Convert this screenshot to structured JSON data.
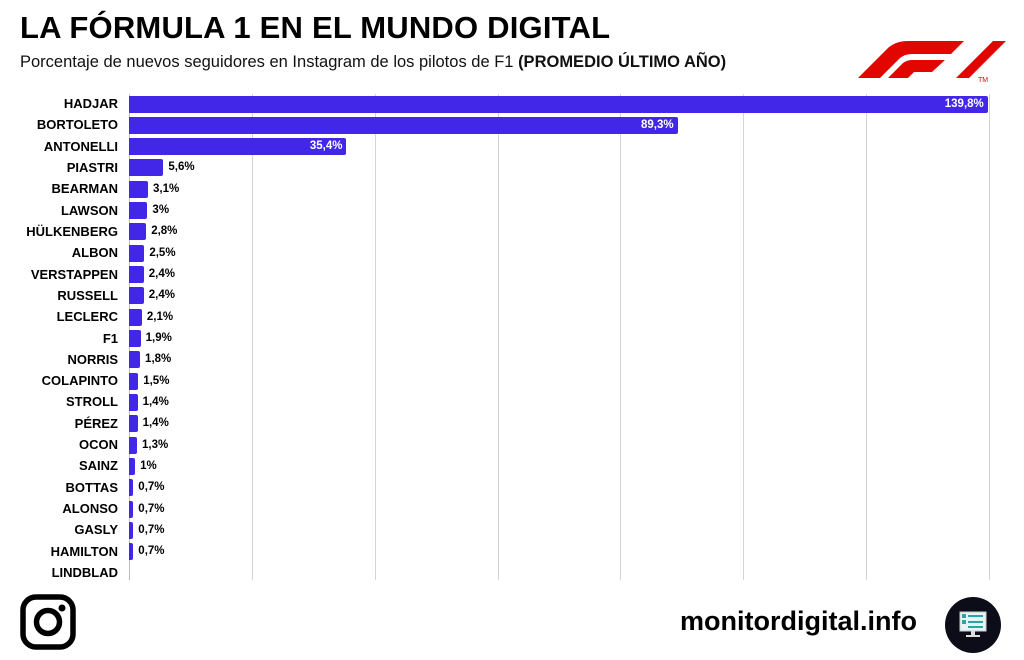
{
  "header": {
    "title": "LA FÓRMULA 1 EN EL MUNDO DIGITAL",
    "subtitle": "Porcentaje de nuevos seguidores en Instagram de los pilotos de F1 ",
    "subtitle_bold": "(PROMEDIO ÚLTIMO AÑO)",
    "logo_text": "F1 ™"
  },
  "footer": {
    "site": "monitordigital.info",
    "icons": [
      "instagram-icon",
      "monitor-icon"
    ]
  },
  "colors": {
    "bar": "#4327e8",
    "logo": "#e10600"
  },
  "chart_data": {
    "type": "bar",
    "orientation": "horizontal",
    "title": "LA FÓRMULA 1 EN EL MUNDO DIGITAL",
    "xlim": [
      0,
      140
    ],
    "grid_step": 20,
    "grid": true,
    "categories": [
      "HADJAR",
      "BORTOLETO",
      "ANTONELLI",
      "PIASTRI",
      "BEARMAN",
      "LAWSON",
      "HÜLKENBERG",
      "ALBON",
      "VERSTAPPEN",
      "RUSSELL",
      "LECLERC",
      "F1",
      "NORRIS",
      "COLAPINTO",
      "STROLL",
      "PÉREZ",
      "OCON",
      "SAINZ",
      "BOTTAS",
      "ALONSO",
      "GASLY",
      "HAMILTON",
      "LINDBLAD"
    ],
    "values": [
      139.8,
      89.3,
      35.4,
      5.6,
      3.1,
      3,
      2.8,
      2.5,
      2.4,
      2.4,
      2.1,
      1.9,
      1.8,
      1.5,
      1.4,
      1.4,
      1.3,
      1,
      0.7,
      0.7,
      0.7,
      0.7,
      null
    ],
    "labels": [
      "139,8%",
      "89,3%",
      "35,4%",
      "5,6%",
      "3,1%",
      "3%",
      "2,8%",
      "2,5%",
      "2,4%",
      "2,4%",
      "2,1%",
      "1,9%",
      "1,8%",
      "1,5%",
      "1,4%",
      "1,4%",
      "1,3%",
      "1%",
      "0,7%",
      "0,7%",
      "0,7%",
      "0,7%",
      ""
    ]
  }
}
